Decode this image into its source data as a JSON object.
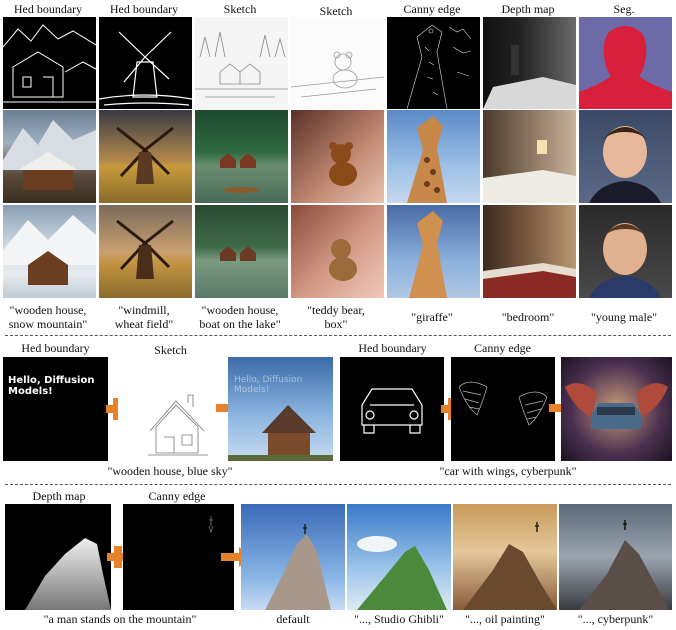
{
  "top": {
    "column_labels": [
      "Hed boundary",
      "Hed boundary",
      "Sketch",
      "Sketch",
      "Canny edge",
      "Depth map",
      "Seg."
    ],
    "captions": [
      "\"wooden house,\nsnow mountain\"",
      "\"windmill,\nwheat field\"",
      "\"wooden house,\nboat on the lake\"",
      "\"teddy bear,\nbox\"",
      "\"giraffe\"",
      "\"bedroom\"",
      "\"young male\""
    ]
  },
  "middle": {
    "left_labels": [
      "Hed boundary",
      "Sketch"
    ],
    "left_overlay_text": "Hello, Diffusion Models!",
    "left_caption": "\"wooden house, blue sky\"",
    "right_labels": [
      "Hed boundary",
      "Canny edge"
    ],
    "right_caption": "\"car with wings, cyberpunk\""
  },
  "bottom": {
    "labels": [
      "Depth map",
      "Canny edge"
    ],
    "left_caption": "\"a man stands on the mountain\"",
    "style_captions": [
      "default",
      "\"..., Studio Ghibli\"",
      "\"..., oil painting\"",
      "\"..., cyberpunk\""
    ]
  },
  "colors": {
    "accent": "#e7822b"
  }
}
